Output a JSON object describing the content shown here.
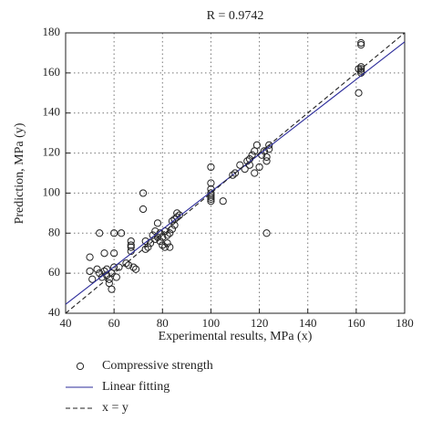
{
  "chart_data": {
    "type": "scatter",
    "title": "R = 0.9742",
    "xlabel": "Experimental results, MPa (x)",
    "ylabel": "Prediction, MPa (y)",
    "xlim": [
      40,
      180
    ],
    "ylim": [
      40,
      180
    ],
    "xticks": [
      40,
      60,
      80,
      100,
      120,
      140,
      160,
      180
    ],
    "yticks": [
      40,
      60,
      80,
      100,
      120,
      140,
      160,
      180
    ],
    "grid": true,
    "legend": "below",
    "series": [
      {
        "name": "Compressive strength",
        "color": "#222222",
        "kind": "points",
        "x": [
          50,
          50,
          51,
          53,
          54,
          54,
          55,
          56,
          56,
          57,
          57,
          58,
          58,
          59,
          59,
          60,
          60,
          60,
          61,
          62,
          63,
          65,
          66,
          67,
          67,
          67,
          67,
          68,
          69,
          72,
          72,
          73,
          73,
          74,
          75,
          76,
          77,
          77,
          78,
          78,
          79,
          79,
          80,
          80,
          81,
          81,
          82,
          82,
          83,
          83,
          84,
          84,
          85,
          85,
          86,
          86,
          87,
          100,
          100,
          100,
          100,
          100,
          100,
          100,
          100,
          105,
          109,
          110,
          112,
          114,
          115,
          116,
          116,
          117,
          118,
          118,
          119,
          120,
          121,
          122,
          123,
          123,
          123,
          124,
          124,
          161,
          161,
          162,
          162,
          162,
          162,
          162,
          162
        ],
        "values": [
          68,
          61,
          57,
          62,
          80,
          60,
          58,
          70,
          61,
          59,
          62,
          57,
          55,
          52,
          60,
          63,
          70,
          80,
          58,
          63,
          80,
          65,
          64,
          76,
          74,
          73,
          71,
          63,
          62,
          100,
          92,
          76,
          72,
          73,
          75,
          79,
          81,
          77,
          85,
          78,
          80,
          76,
          78,
          74,
          81,
          73,
          79,
          75,
          80,
          73,
          86,
          82,
          84,
          87,
          88,
          90,
          89,
          113,
          105,
          102,
          100,
          99,
          98,
          97,
          96,
          96,
          109,
          110,
          114,
          112,
          116,
          117,
          114,
          119,
          121,
          110,
          124,
          113,
          119,
          121,
          116,
          118,
          80,
          124,
          122,
          162,
          150,
          163,
          162,
          161,
          160,
          174,
          175
        ]
      },
      {
        "name": "Linear fitting",
        "color": "#2b2b9a",
        "kind": "line",
        "dash": false,
        "x": [
          40,
          180
        ],
        "values": [
          44.5,
          175.5
        ]
      },
      {
        "name": "x = y",
        "color": "#222222",
        "kind": "line",
        "dash": true,
        "x": [
          40,
          180
        ],
        "values": [
          40,
          180
        ]
      }
    ]
  }
}
